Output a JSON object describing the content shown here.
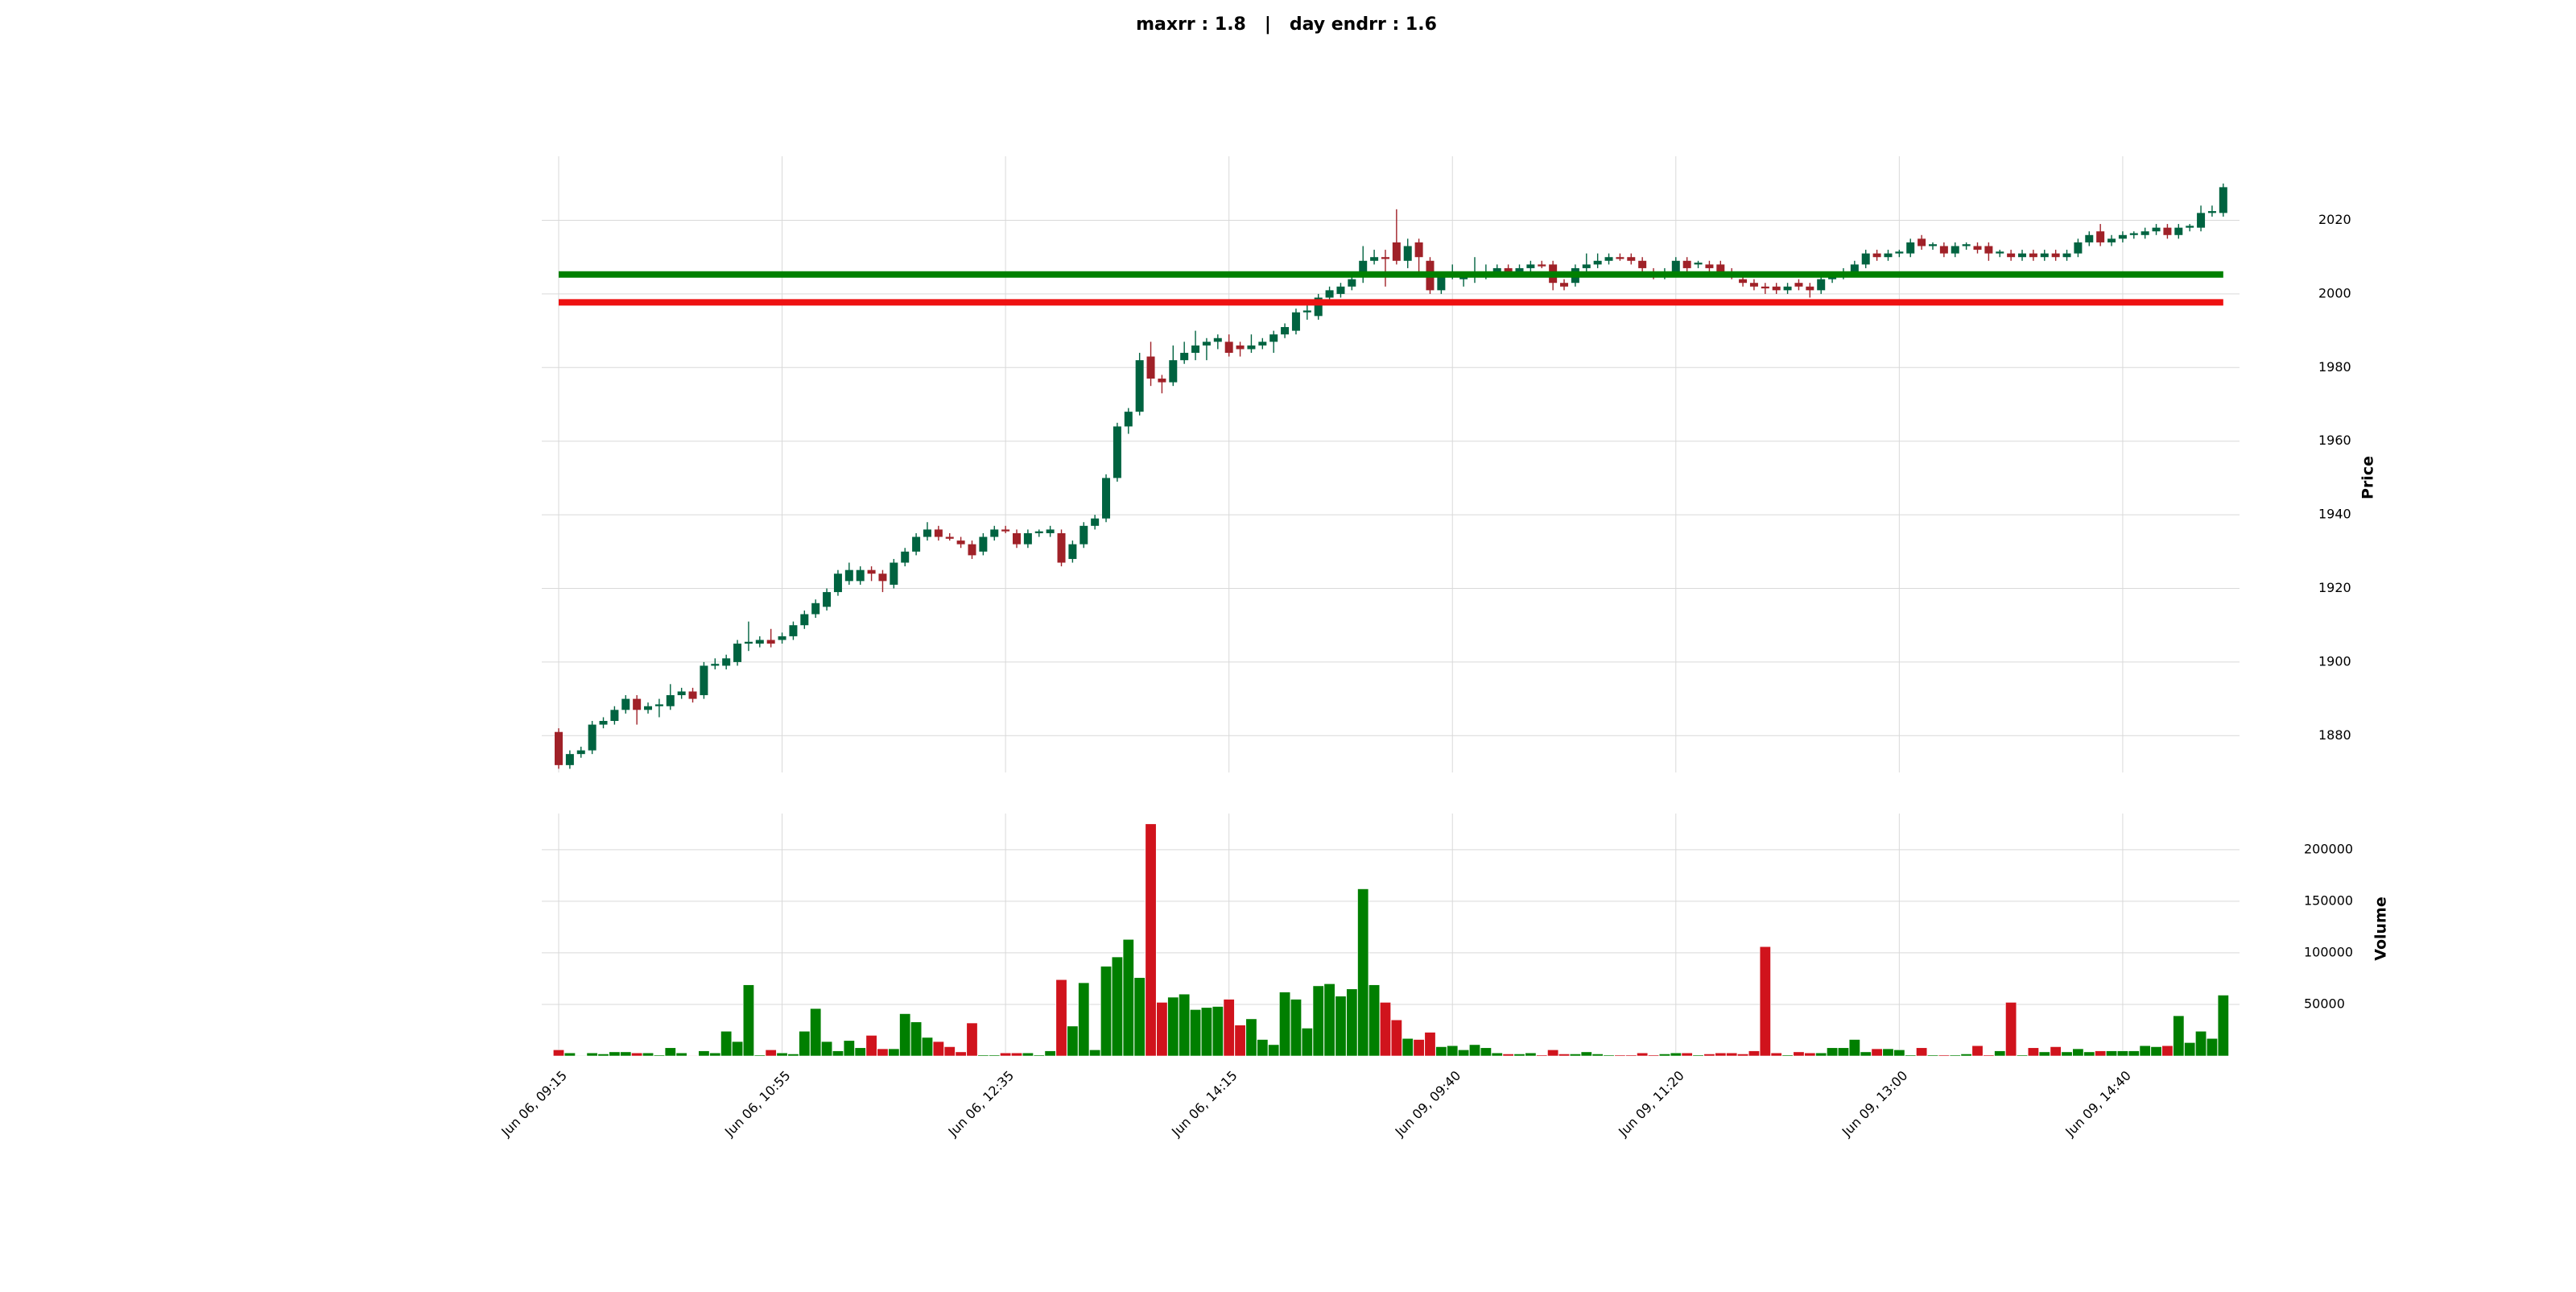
{
  "chart_data": {
    "type": "candlestick",
    "title": "maxrr : 1.8   |   day endrr : 1.6",
    "y_label": "Price",
    "y2_label": "Volume",
    "grid": true,
    "up_color": "#006340",
    "down_color": "#a02128",
    "volume_up_color": "#007f00",
    "volume_down_color": "#d0131c",
    "categories": [
      "Jun 06, 09:15",
      null,
      null,
      null,
      null,
      null,
      null,
      null,
      null,
      null,
      null,
      null,
      null,
      null,
      null,
      null,
      null,
      null,
      null,
      null,
      "Jun 06, 10:55",
      null,
      null,
      null,
      null,
      null,
      null,
      null,
      null,
      null,
      null,
      null,
      null,
      null,
      null,
      null,
      null,
      null,
      null,
      null,
      "Jun 06, 12:35",
      null,
      null,
      null,
      null,
      null,
      null,
      null,
      null,
      null,
      null,
      null,
      null,
      null,
      null,
      null,
      null,
      null,
      null,
      null,
      "Jun 06, 14:15",
      null,
      null,
      null,
      null,
      null,
      null,
      null,
      null,
      null,
      null,
      null,
      null,
      null,
      null,
      null,
      null,
      null,
      null,
      null,
      "Jun 09, 09:40",
      null,
      null,
      null,
      null,
      null,
      null,
      null,
      null,
      null,
      null,
      null,
      null,
      null,
      null,
      null,
      null,
      null,
      null,
      null,
      "Jun 09, 11:20",
      null,
      null,
      null,
      null,
      null,
      null,
      null,
      null,
      null,
      null,
      null,
      null,
      null,
      null,
      null,
      null,
      null,
      null,
      null,
      "Jun 09, 13:00",
      null,
      null,
      null,
      null,
      null,
      null,
      null,
      null,
      null,
      null,
      null,
      null,
      null,
      null,
      null,
      null,
      null,
      null,
      null,
      "Jun 09, 14:40",
      null,
      null,
      null,
      null,
      null,
      null,
      null,
      null,
      null
    ],
    "open": [
      1881,
      1872,
      1875,
      1876,
      1883,
      1884,
      1887,
      1890,
      1887,
      1888,
      1888,
      1891,
      1892,
      1891,
      1899,
      1899,
      1900,
      1905,
      1905,
      1906,
      1906,
      1907,
      1910,
      1913,
      1915,
      1919,
      1922,
      1922,
      1925,
      1924,
      1921,
      1927,
      1930,
      1934,
      1936,
      1934,
      1933,
      1932,
      1930,
      1934,
      1936,
      1935,
      1932,
      1935,
      1935,
      1935,
      1928,
      1932,
      1937,
      1939,
      1950,
      1964,
      1968,
      1983,
      1977,
      1976,
      1982,
      1984,
      1986,
      1987,
      1987,
      1986,
      1985,
      1986,
      1987,
      1989,
      1990,
      1995,
      1994,
      1999,
      2000,
      2002,
      2005,
      2009,
      2010,
      2014,
      2009,
      2014,
      2009,
      2001,
      2005,
      2004,
      2005,
      2005,
      2006,
      2007,
      2006,
      2007,
      2008,
      2008,
      2003,
      2003,
      2007,
      2008,
      2009,
      2010,
      2010,
      2009,
      2006,
      2005,
      2006,
      2009,
      2008,
      2008,
      2008,
      2006,
      2004,
      2003,
      2002,
      2002,
      2001,
      2003,
      2002,
      2001,
      2004,
      2005,
      2006,
      2008,
      2011,
      2010,
      2011,
      2011,
      2015,
      2013,
      2013,
      2011,
      2013,
      2013,
      2013,
      2011,
      2011,
      2010,
      2011,
      2010,
      2011,
      2010,
      2011,
      2014,
      2017,
      2014,
      2015,
      2016,
      2016,
      2017,
      2018,
      2016,
      2018,
      2018,
      2022,
      2022
    ],
    "high": [
      1882,
      1876,
      1877,
      1884,
      1885,
      1888,
      1891,
      1891,
      1889,
      1890,
      1894,
      1893,
      1893,
      1900,
      1901,
      1902,
      1906,
      1911,
      1907,
      1909,
      1908,
      1911,
      1914,
      1917,
      1920,
      1925,
      1927,
      1926,
      1926,
      1925,
      1928,
      1931,
      1935,
      1938,
      1937,
      1935,
      1934,
      1933,
      1935,
      1937,
      1937,
      1936,
      1936,
      1936,
      1937,
      1936,
      1933,
      1938,
      1940,
      1951,
      1965,
      1969,
      1984,
      1987,
      1978,
      1986,
      1987,
      1990,
      1988,
      1989,
      1989,
      1987,
      1989,
      1988,
      1990,
      1992,
      1996,
      1997,
      2000,
      2002,
      2003,
      2005,
      2013,
      2012,
      2012,
      2023,
      2015,
      2015,
      2010,
      2006,
      2008,
      2006,
      2010,
      2008,
      2008,
      2008,
      2008,
      2009,
      2009,
      2009,
      2004,
      2008,
      2011,
      2011,
      2011,
      2011,
      2011,
      2010,
      2007,
      2007,
      2010,
      2010,
      2009,
      2009,
      2009,
      2007,
      2005,
      2004,
      2003,
      2003,
      2003,
      2004,
      2003,
      2005,
      2006,
      2007,
      2009,
      2012,
      2012,
      2012,
      2012,
      2015,
      2016,
      2014,
      2014,
      2014,
      2014,
      2014,
      2014,
      2012,
      2012,
      2012,
      2012,
      2012,
      2012,
      2012,
      2015,
      2017,
      2019,
      2016,
      2017,
      2017,
      2018,
      2019,
      2019,
      2019,
      2019,
      2024,
      2024,
      2030
    ],
    "low": [
      1871,
      1871,
      1874,
      1875,
      1882,
      1883,
      1886,
      1883,
      1886,
      1885,
      1887,
      1890,
      1889,
      1890,
      1898,
      1898,
      1899,
      1903,
      1904,
      1904,
      1905,
      1906,
      1909,
      1912,
      1914,
      1918,
      1921,
      1921,
      1922,
      1919,
      1920,
      1926,
      1929,
      1933,
      1933,
      1933,
      1931,
      1928,
      1929,
      1933,
      1935,
      1931,
      1931,
      1934,
      1934,
      1926,
      1927,
      1931,
      1936,
      1938,
      1949,
      1962,
      1967,
      1975,
      1973,
      1975,
      1981,
      1982,
      1982,
      1985,
      1983,
      1983,
      1984,
      1985,
      1984,
      1988,
      1989,
      1993,
      1993,
      1998,
      1999,
      2001,
      2003,
      2008,
      2002,
      2008,
      2007,
      2005,
      2000,
      2000,
      2004,
      2002,
      2003,
      2004,
      2005,
      2005,
      2005,
      2006,
      2007,
      2001,
      2001,
      2002,
      2006,
      2007,
      2008,
      2009,
      2008,
      2006,
      2004,
      2004,
      2005,
      2006,
      2007,
      2006,
      2005,
      2004,
      2002,
      2001,
      2000,
      2000,
      2000,
      2001,
      1999,
      2000,
      2003,
      2004,
      2005,
      2007,
      2009,
      2009,
      2010,
      2010,
      2012,
      2012,
      2010,
      2010,
      2012,
      2011,
      2009,
      2010,
      2009,
      2009,
      2009,
      2009,
      2009,
      2009,
      2010,
      2013,
      2013,
      2013,
      2014,
      2015,
      2015,
      2016,
      2015,
      2015,
      2017,
      2017,
      2021,
      2021
    ],
    "close": [
      1872,
      1875,
      1876,
      1883,
      1884,
      1887,
      1890,
      1887,
      1888,
      1888.5,
      1891,
      1892,
      1890,
      1899,
      1899.5,
      1901,
      1905,
      1905.5,
      1906,
      1905,
      1907,
      1910,
      1913,
      1916,
      1919,
      1924,
      1925,
      1925,
      1924,
      1922,
      1927,
      1930,
      1934,
      1936,
      1934,
      1933.5,
      1932,
      1929,
      1934,
      1936,
      1935.5,
      1932,
      1935,
      1935.5,
      1936,
      1927,
      1932,
      1937,
      1939,
      1950,
      1964,
      1968,
      1982,
      1977,
      1976,
      1982,
      1984,
      1986,
      1987,
      1988,
      1984,
      1985,
      1986,
      1987,
      1989,
      1991,
      1995,
      1995.5,
      1999,
      2001,
      2002,
      2004,
      2009,
      2010,
      2009.5,
      2009,
      2013,
      2010,
      2001,
      2005,
      2005.5,
      2005,
      2005.5,
      2006,
      2007,
      2006,
      2007,
      2008,
      2007.5,
      2003,
      2002,
      2007,
      2008,
      2009,
      2010,
      2009.5,
      2009,
      2007,
      2005,
      2005.5,
      2009,
      2007,
      2008.5,
      2007,
      2006,
      2005,
      2003,
      2002,
      2001.5,
      2001,
      2002,
      2002,
      2001,
      2004,
      2005,
      2006,
      2008,
      2011,
      2010,
      2011,
      2011.5,
      2014,
      2013,
      2013.5,
      2011,
      2013,
      2013.5,
      2012,
      2011,
      2011.5,
      2010,
      2011,
      2010,
      2011,
      2010,
      2011,
      2014,
      2016,
      2014,
      2015,
      2016,
      2016.5,
      2017,
      2018,
      2016,
      2018,
      2018.5,
      2022,
      2022.5,
      2029
    ],
    "volume": [
      6000,
      3000,
      500,
      3000,
      2000,
      4000,
      4000,
      3000,
      3000,
      1000,
      8000,
      3000,
      500,
      5000,
      3000,
      24000,
      14000,
      69000,
      1000,
      6000,
      3000,
      2000,
      24000,
      46000,
      14000,
      5000,
      15000,
      8000,
      20000,
      7000,
      7000,
      41000,
      33000,
      18000,
      14000,
      9000,
      4000,
      32000,
      1000,
      1000,
      3000,
      3000,
      3000,
      1000,
      5000,
      74000,
      29000,
      71000,
      6000,
      87000,
      96000,
      113000,
      76000,
      225000,
      52000,
      57000,
      60000,
      45000,
      47000,
      48000,
      55000,
      30000,
      36000,
      16000,
      11000,
      62000,
      55000,
      27000,
      68000,
      70000,
      58000,
      65000,
      162000,
      69000,
      52000,
      35000,
      17000,
      16000,
      23000,
      9000,
      10000,
      6000,
      11000,
      8000,
      3000,
      2000,
      2000,
      3000,
      1000,
      6000,
      2000,
      2000,
      4000,
      2000,
      1000,
      1000,
      1000,
      3000,
      1000,
      2000,
      3000,
      3000,
      1000,
      2000,
      3000,
      3000,
      2000,
      5000,
      106000,
      3000,
      1000,
      4000,
      3000,
      3000,
      8000,
      8000,
      16000,
      4000,
      7000,
      7000,
      6000,
      1000,
      8000,
      1000,
      1000,
      1000,
      2000,
      10000,
      1000,
      5000,
      52000,
      1000,
      8000,
      4000,
      9000,
      4000,
      7000,
      4000,
      5000,
      5000,
      5000,
      5000,
      10000,
      9000,
      10000,
      39000,
      13000,
      24000,
      17000,
      59000
    ],
    "hlines": [
      {
        "value": 2005.3,
        "color": "#008000"
      },
      {
        "value": 1997.7,
        "color": "#ee1111"
      }
    ],
    "ylim": [
      1870,
      2037.4
    ],
    "yticks": [
      1880,
      1900,
      1920,
      1940,
      1960,
      1980,
      2000,
      2020
    ],
    "y2lim": [
      0,
      235000
    ],
    "y2ticks": [
      50000,
      100000,
      150000,
      200000
    ]
  }
}
